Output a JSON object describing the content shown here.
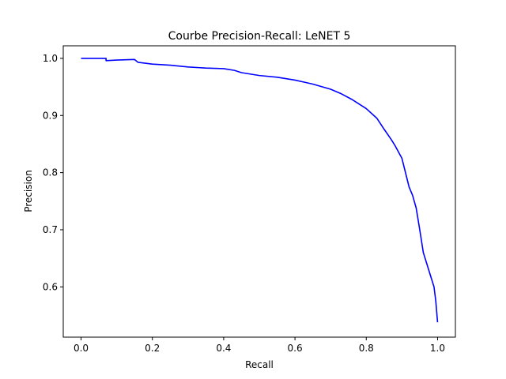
{
  "chart_data": {
    "type": "line",
    "title": "Courbe Precision-Recall: LeNET 5",
    "xlabel": "Recall",
    "ylabel": "Precision",
    "xlim": [
      -0.05,
      1.05
    ],
    "ylim": [
      0.512,
      1.022
    ],
    "xticks": [
      0.0,
      0.2,
      0.4,
      0.6,
      0.8,
      1.0
    ],
    "xtick_labels": [
      "0.0",
      "0.2",
      "0.4",
      "0.6",
      "0.8",
      "1.0"
    ],
    "yticks": [
      0.6,
      0.7,
      0.8,
      0.9,
      1.0
    ],
    "ytick_labels": [
      "0.6",
      "0.7",
      "0.8",
      "0.9",
      "1.0"
    ],
    "grid": false,
    "line_color": "#0000ff",
    "series": [
      {
        "points": [
          [
            0.0,
            1.0
          ],
          [
            0.07,
            1.0
          ],
          [
            0.07,
            0.996
          ],
          [
            0.1,
            0.997
          ],
          [
            0.15,
            0.998
          ],
          [
            0.16,
            0.993
          ],
          [
            0.2,
            0.99
          ],
          [
            0.25,
            0.988
          ],
          [
            0.3,
            0.985
          ],
          [
            0.35,
            0.983
          ],
          [
            0.4,
            0.982
          ],
          [
            0.43,
            0.979
          ],
          [
            0.45,
            0.975
          ],
          [
            0.5,
            0.97
          ],
          [
            0.55,
            0.967
          ],
          [
            0.6,
            0.962
          ],
          [
            0.65,
            0.955
          ],
          [
            0.7,
            0.946
          ],
          [
            0.73,
            0.938
          ],
          [
            0.76,
            0.928
          ],
          [
            0.8,
            0.912
          ],
          [
            0.83,
            0.895
          ],
          [
            0.85,
            0.876
          ],
          [
            0.87,
            0.858
          ],
          [
            0.88,
            0.848
          ],
          [
            0.9,
            0.825
          ],
          [
            0.91,
            0.8
          ],
          [
            0.92,
            0.775
          ],
          [
            0.93,
            0.76
          ],
          [
            0.94,
            0.738
          ],
          [
            0.95,
            0.7
          ],
          [
            0.96,
            0.66
          ],
          [
            0.97,
            0.64
          ],
          [
            0.98,
            0.62
          ],
          [
            0.99,
            0.6
          ],
          [
            0.995,
            0.575
          ],
          [
            1.0,
            0.538
          ]
        ]
      }
    ]
  }
}
